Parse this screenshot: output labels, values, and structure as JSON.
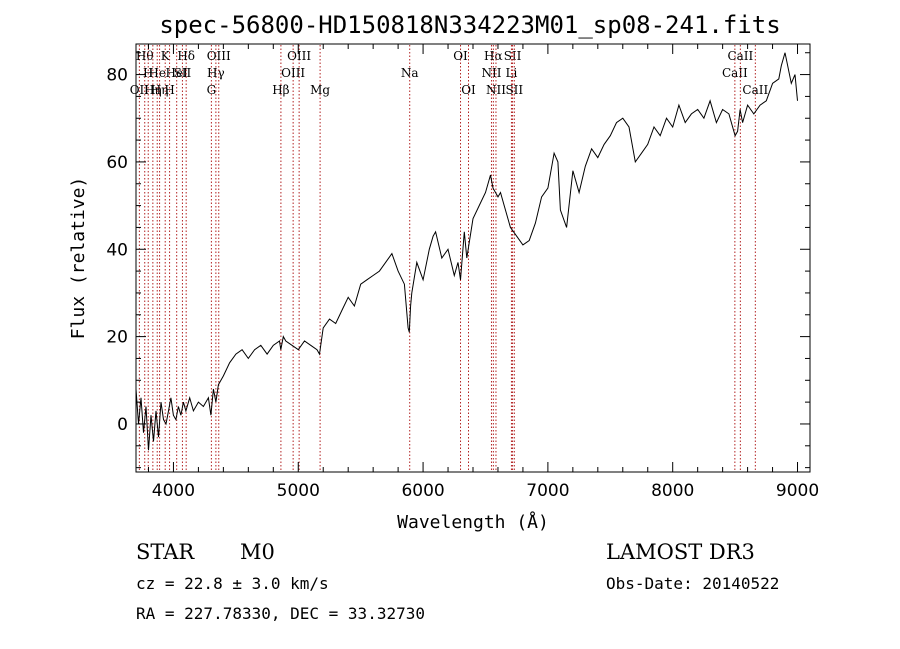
{
  "chart_data": {
    "type": "line",
    "title": "spec-56800-HD150818N334223M01_sp08-241.fits",
    "xlabel": "Wavelength (Å)",
    "ylabel": "Flux (relative)",
    "xlim": [
      3700,
      9100
    ],
    "ylim": [
      -11,
      87
    ],
    "xticks": [
      4000,
      5000,
      6000,
      7000,
      8000,
      9000
    ],
    "yticks": [
      0,
      20,
      40,
      60,
      80
    ],
    "line_color": "#000000",
    "marker_color": "#b22222",
    "series": [
      {
        "name": "flux",
        "x": [
          3700,
          3720,
          3740,
          3760,
          3780,
          3800,
          3820,
          3840,
          3860,
          3880,
          3900,
          3920,
          3940,
          3960,
          3980,
          4000,
          4020,
          4040,
          4060,
          4080,
          4100,
          4130,
          4160,
          4200,
          4240,
          4280,
          4300,
          4320,
          4340,
          4360,
          4400,
          4450,
          4500,
          4550,
          4600,
          4650,
          4700,
          4750,
          4800,
          4850,
          4860,
          4880,
          4900,
          4950,
          5000,
          5050,
          5100,
          5150,
          5170,
          5200,
          5250,
          5300,
          5350,
          5400,
          5450,
          5500,
          5550,
          5600,
          5650,
          5700,
          5750,
          5800,
          5850,
          5880,
          5890,
          5900,
          5910,
          5950,
          6000,
          6050,
          6080,
          6100,
          6150,
          6200,
          6250,
          6280,
          6300,
          6330,
          6350,
          6400,
          6450,
          6500,
          6540,
          6560,
          6580,
          6600,
          6620,
          6650,
          6700,
          6750,
          6800,
          6850,
          6900,
          6950,
          7000,
          7050,
          7080,
          7100,
          7150,
          7200,
          7250,
          7300,
          7350,
          7400,
          7450,
          7500,
          7550,
          7600,
          7650,
          7700,
          7750,
          7800,
          7850,
          7900,
          7950,
          8000,
          8050,
          8100,
          8150,
          8200,
          8250,
          8300,
          8350,
          8400,
          8450,
          8500,
          8520,
          8540,
          8560,
          8600,
          8650,
          8700,
          8750,
          8800,
          8850,
          8870,
          8900,
          8950,
          8980,
          9000
        ],
        "values": [
          8,
          0,
          6,
          -2,
          4,
          -6,
          2,
          -4,
          3,
          -3,
          5,
          1,
          0,
          3,
          6,
          2,
          1,
          4,
          2,
          5,
          3,
          6,
          3,
          5,
          4,
          6,
          2,
          8,
          5,
          9,
          11,
          14,
          16,
          17,
          15,
          17,
          18,
          16,
          18,
          19,
          17,
          20,
          19,
          18,
          17,
          19,
          18,
          17,
          16,
          22,
          24,
          23,
          26,
          29,
          27,
          32,
          33,
          34,
          35,
          37,
          39,
          35,
          32,
          22,
          21,
          27,
          30,
          37,
          33,
          40,
          43,
          44,
          38,
          40,
          34,
          37,
          33,
          44,
          38,
          47,
          50,
          53,
          57,
          54,
          53,
          52,
          53,
          50,
          45,
          43,
          41,
          42,
          46,
          52,
          54,
          62,
          60,
          49,
          45,
          58,
          53,
          59,
          63,
          61,
          64,
          66,
          69,
          70,
          68,
          60,
          62,
          64,
          68,
          66,
          70,
          68,
          73,
          69,
          71,
          72,
          70,
          74,
          69,
          72,
          71,
          66,
          67,
          72,
          69,
          73,
          71,
          73,
          74,
          78,
          79,
          82,
          85,
          78,
          80,
          74
        ]
      }
    ],
    "spectral_lines": [
      {
        "x": 3727,
        "label": "OII",
        "row": 2
      },
      {
        "x": 3770,
        "label": "Hθ",
        "row": 0
      },
      {
        "x": 3798,
        "label": "H",
        "row": 1
      },
      {
        "x": 3835,
        "label": "Hη",
        "row": 2
      },
      {
        "x": 3870,
        "label": "He",
        "row": 1
      },
      {
        "x": 3889,
        "label": "Hη",
        "row": 2
      },
      {
        "x": 3934,
        "label": "K",
        "row": 0
      },
      {
        "x": 3969,
        "label": "H",
        "row": 2
      },
      {
        "x": 4026,
        "label": "HeI",
        "row": 1
      },
      {
        "x": 4072,
        "label": "SII",
        "row": 1
      },
      {
        "x": 4102,
        "label": "Hδ",
        "row": 0
      },
      {
        "x": 4304,
        "label": "G",
        "row": 2
      },
      {
        "x": 4340,
        "label": "Hγ",
        "row": 1
      },
      {
        "x": 4363,
        "label": "OIII",
        "row": 0
      },
      {
        "x": 4861,
        "label": "Hβ",
        "row": 2
      },
      {
        "x": 4959,
        "label": "OIII",
        "row": 1
      },
      {
        "x": 5007,
        "label": "OIII",
        "row": 0
      },
      {
        "x": 5175,
        "label": "Mg",
        "row": 2
      },
      {
        "x": 5893,
        "label": "Na",
        "row": 1
      },
      {
        "x": 6300,
        "label": "OI",
        "row": 0
      },
      {
        "x": 6364,
        "label": "OI",
        "row": 2
      },
      {
        "x": 6548,
        "label": "NII",
        "row": 1
      },
      {
        "x": 6563,
        "label": "Hα",
        "row": 0
      },
      {
        "x": 6584,
        "label": "NII",
        "row": 2
      },
      {
        "x": 6708,
        "label": "Li",
        "row": 1
      },
      {
        "x": 6717,
        "label": "SII",
        "row": 0
      },
      {
        "x": 6731,
        "label": "SII",
        "row": 2
      },
      {
        "x": 8498,
        "label": "CaII",
        "row": 1
      },
      {
        "x": 8542,
        "label": "CaII",
        "row": 0
      },
      {
        "x": 8662,
        "label": "CaII",
        "row": 2
      }
    ]
  },
  "info": {
    "class": "STAR",
    "subclass": "M0",
    "survey": "LAMOST DR3",
    "cz": "cz = 22.8 ± 3.0 km/s",
    "obs_date": "Obs-Date: 20140522",
    "coords": "RA = 227.78330, DEC =  33.32730"
  }
}
